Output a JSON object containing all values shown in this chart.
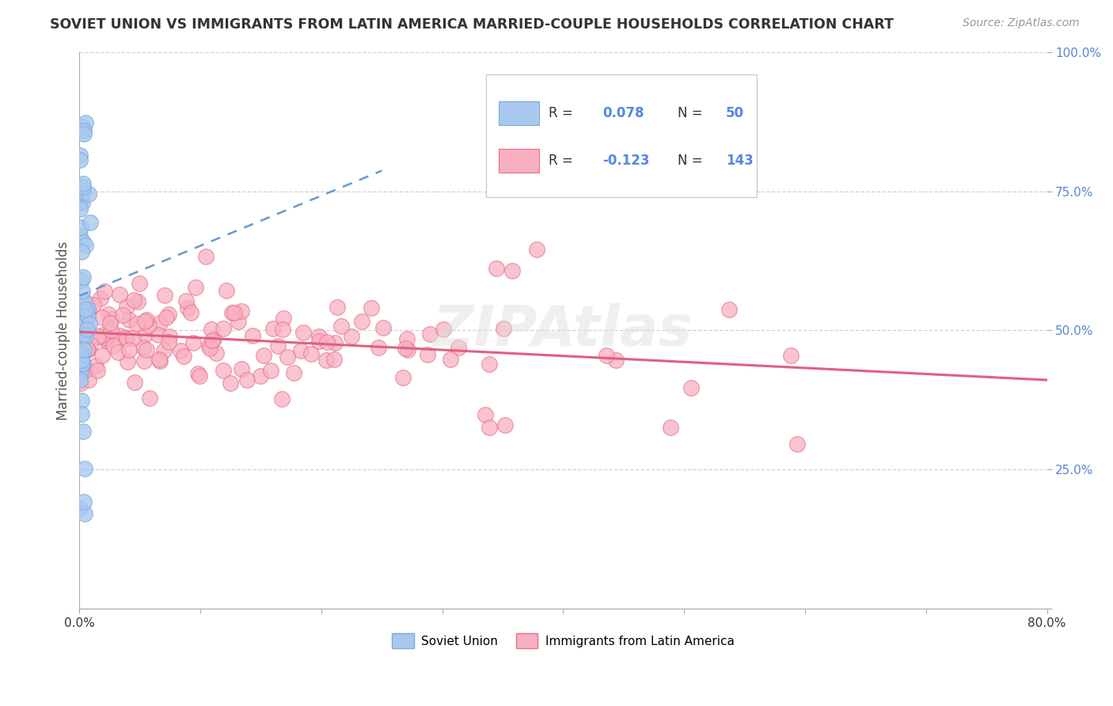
{
  "title": "SOVIET UNION VS IMMIGRANTS FROM LATIN AMERICA MARRIED-COUPLE HOUSEHOLDS CORRELATION CHART",
  "source": "Source: ZipAtlas.com",
  "ylabel": "Married-couple Households",
  "xmin": 0.0,
  "xmax": 0.8,
  "ymin": 0.0,
  "ymax": 1.0,
  "watermark": "ZIPAtlas",
  "r1": "0.078",
  "n1": "50",
  "r2": "-0.123",
  "n2": "143",
  "color_soviet": "#A8C8F0",
  "color_soviet_edge": "#7AAAD8",
  "color_latin": "#F8B0C0",
  "color_latin_edge": "#E87090",
  "color_soviet_line": "#6699CC",
  "color_latin_line": "#E06080",
  "color_ytick": "#5588CC",
  "color_xtick": "#333333",
  "color_title": "#333333",
  "color_source": "#999999",
  "color_grid": "#CCCCCC",
  "color_watermark": "#DDDDDD"
}
